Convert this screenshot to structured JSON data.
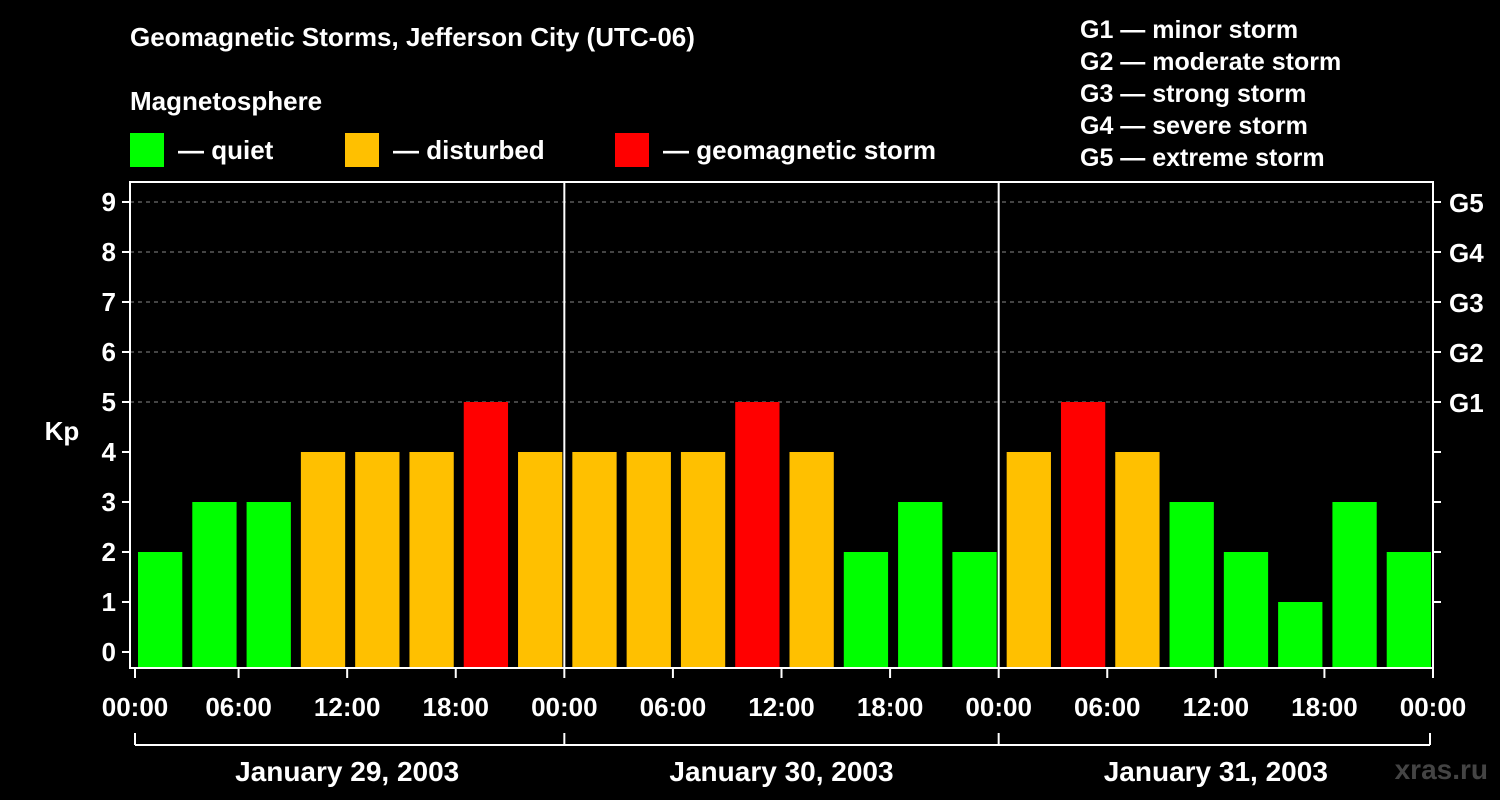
{
  "chart_data": {
    "type": "bar",
    "title": "Geomagnetic Storms, Jefferson City (UTC-06)",
    "subtitle": "Magnetosphere",
    "ylabel": "Kp",
    "ylim": [
      0,
      9
    ],
    "y_ticks": [
      "0",
      "1",
      "2",
      "3",
      "4",
      "5",
      "6",
      "7",
      "8",
      "9"
    ],
    "right_ticks": [
      {
        "kp": 5,
        "label": "G1"
      },
      {
        "kp": 6,
        "label": "G2"
      },
      {
        "kp": 7,
        "label": "G3"
      },
      {
        "kp": 8,
        "label": "G4"
      },
      {
        "kp": 9,
        "label": "G5"
      }
    ],
    "x_ticks": [
      "00:00",
      "06:00",
      "12:00",
      "18:00",
      "00:00",
      "06:00",
      "12:00",
      "18:00",
      "00:00",
      "06:00",
      "12:00",
      "18:00",
      "00:00"
    ],
    "days": [
      "January 29, 2003",
      "January 30, 2003",
      "January 31, 2003"
    ],
    "values": [
      2,
      3,
      3,
      4,
      4,
      4,
      5,
      4,
      4,
      4,
      4,
      5,
      4,
      2,
      3,
      2,
      4,
      5,
      4,
      3,
      2,
      1,
      3,
      2
    ],
    "legend": [
      {
        "label": "— quiet",
        "color": "#00ff00"
      },
      {
        "label": "— disturbed",
        "color": "#ffc000"
      },
      {
        "label": "— geomagnetic storm",
        "color": "#ff0000"
      }
    ],
    "storm_scale": [
      "G1 — minor storm",
      "G2 — moderate storm",
      "G3 — strong storm",
      "G4 — severe storm",
      "G5 — extreme storm"
    ]
  },
  "colors": {
    "quiet": "#00ff00",
    "disturbed": "#ffc000",
    "storm": "#ff0000"
  },
  "watermark": "xras.ru"
}
